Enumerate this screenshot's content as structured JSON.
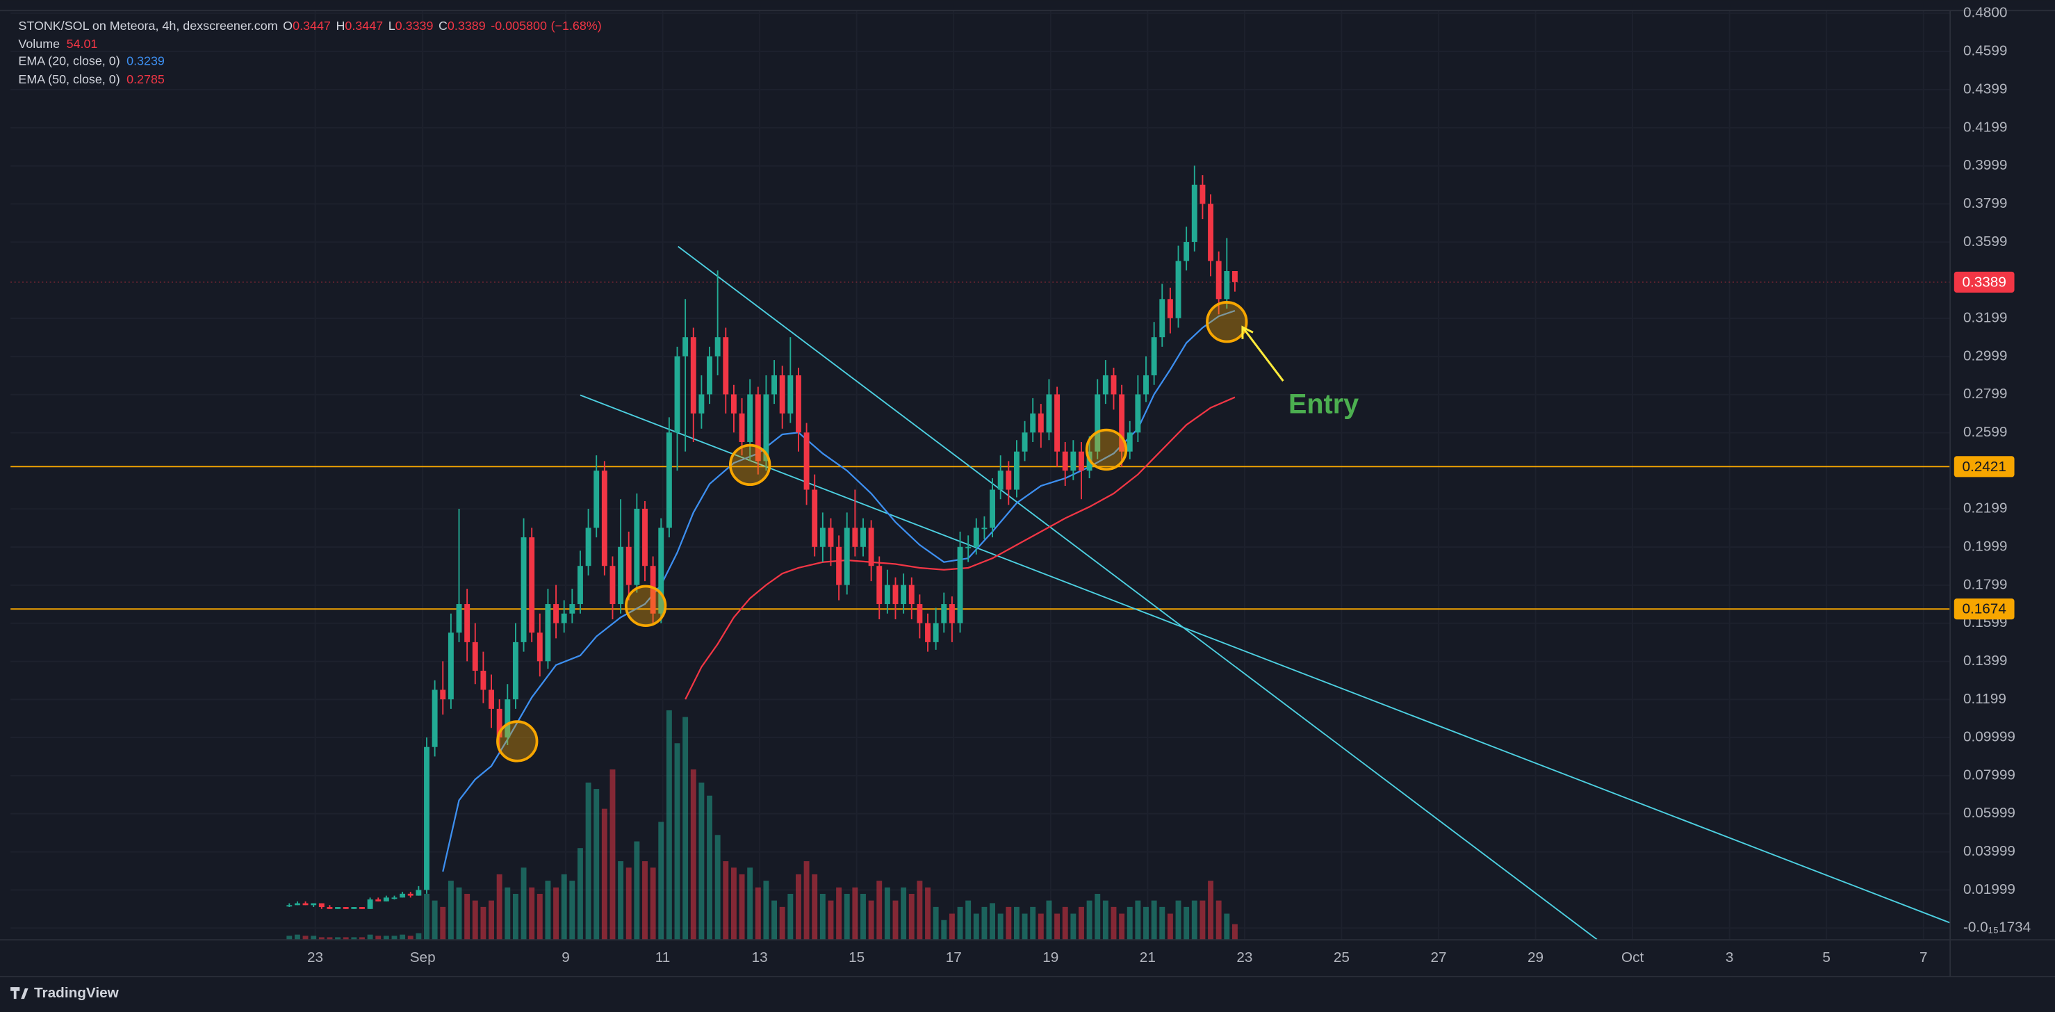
{
  "brand": "TradingView",
  "chart_data": {
    "type": "candlestick",
    "title": "STONK/SOL on Meteora, 4h, dexscreener.com",
    "ohlc_letters": [
      "O",
      "H",
      "L",
      "C"
    ],
    "change": {
      "value": -0.0058,
      "label": "-0.005800"
    },
    "change_pct": {
      "value": -1.68,
      "label": "(−1.68%)"
    },
    "volume_name": "Volume",
    "up_color": "#22ab94",
    "down_color": "#f23645",
    "x": [
      0,
      1,
      2,
      3,
      4,
      5,
      6,
      7,
      8,
      9,
      10,
      11,
      12,
      13,
      14,
      15,
      16,
      17,
      18,
      19,
      20,
      21,
      22,
      23,
      24,
      25,
      26,
      27,
      28,
      29,
      30,
      31,
      32,
      33,
      34,
      35,
      36,
      37,
      38,
      39,
      40,
      41,
      42,
      43,
      44,
      45,
      46,
      47,
      48,
      49,
      50,
      51,
      52,
      53,
      54,
      55,
      56,
      57,
      58,
      59,
      60,
      61,
      62,
      63,
      64,
      65,
      66,
      67,
      68,
      69,
      70,
      71,
      72,
      73,
      74,
      75,
      76,
      77,
      78,
      79,
      80,
      81,
      82,
      83,
      84,
      85,
      86,
      87,
      88,
      89,
      90,
      91,
      92,
      93,
      94,
      95,
      96,
      97,
      98,
      99,
      100,
      101,
      102,
      103,
      104,
      105,
      106,
      107,
      108,
      109,
      110,
      111,
      112,
      113,
      114,
      115,
      116,
      117
    ],
    "ohlc": [
      [
        0.012,
        0.013,
        0.011,
        0.012
      ],
      [
        0.012,
        0.014,
        0.012,
        0.013
      ],
      [
        0.013,
        0.014,
        0.012,
        0.012
      ],
      [
        0.012,
        0.013,
        0.011,
        0.013
      ],
      [
        0.013,
        0.013,
        0.01,
        0.011
      ],
      [
        0.011,
        0.012,
        0.01,
        0.01
      ],
      [
        0.01,
        0.011,
        0.01,
        0.011
      ],
      [
        0.011,
        0.011,
        0.01,
        0.01
      ],
      [
        0.01,
        0.011,
        0.01,
        0.011
      ],
      [
        0.011,
        0.011,
        0.01,
        0.01
      ],
      [
        0.01,
        0.016,
        0.01,
        0.015
      ],
      [
        0.015,
        0.016,
        0.014,
        0.014
      ],
      [
        0.014,
        0.017,
        0.014,
        0.016
      ],
      [
        0.016,
        0.017,
        0.015,
        0.016
      ],
      [
        0.016,
        0.019,
        0.016,
        0.018
      ],
      [
        0.018,
        0.019,
        0.016,
        0.017
      ],
      [
        0.017,
        0.022,
        0.017,
        0.02
      ],
      [
        0.02,
        0.1,
        0.018,
        0.095
      ],
      [
        0.095,
        0.13,
        0.09,
        0.125
      ],
      [
        0.125,
        0.14,
        0.112,
        0.12
      ],
      [
        0.12,
        0.165,
        0.115,
        0.155
      ],
      [
        0.155,
        0.22,
        0.15,
        0.17
      ],
      [
        0.17,
        0.178,
        0.14,
        0.15
      ],
      [
        0.15,
        0.16,
        0.128,
        0.135
      ],
      [
        0.135,
        0.145,
        0.118,
        0.125
      ],
      [
        0.125,
        0.133,
        0.105,
        0.115
      ],
      [
        0.115,
        0.12,
        0.092,
        0.1
      ],
      [
        0.1,
        0.128,
        0.096,
        0.12
      ],
      [
        0.12,
        0.16,
        0.115,
        0.15
      ],
      [
        0.15,
        0.215,
        0.145,
        0.205
      ],
      [
        0.205,
        0.21,
        0.15,
        0.155
      ],
      [
        0.155,
        0.165,
        0.132,
        0.14
      ],
      [
        0.14,
        0.178,
        0.136,
        0.17
      ],
      [
        0.17,
        0.18,
        0.152,
        0.16
      ],
      [
        0.16,
        0.172,
        0.155,
        0.165
      ],
      [
        0.165,
        0.178,
        0.16,
        0.17
      ],
      [
        0.17,
        0.198,
        0.165,
        0.19
      ],
      [
        0.19,
        0.22,
        0.185,
        0.21
      ],
      [
        0.21,
        0.248,
        0.205,
        0.24
      ],
      [
        0.24,
        0.245,
        0.185,
        0.19
      ],
      [
        0.19,
        0.195,
        0.162,
        0.17
      ],
      [
        0.17,
        0.225,
        0.165,
        0.2
      ],
      [
        0.2,
        0.208,
        0.172,
        0.18
      ],
      [
        0.18,
        0.228,
        0.176,
        0.22
      ],
      [
        0.22,
        0.224,
        0.182,
        0.19
      ],
      [
        0.19,
        0.195,
        0.16,
        0.165
      ],
      [
        0.165,
        0.215,
        0.16,
        0.21
      ],
      [
        0.21,
        0.268,
        0.205,
        0.26
      ],
      [
        0.26,
        0.305,
        0.24,
        0.3
      ],
      [
        0.3,
        0.33,
        0.25,
        0.31
      ],
      [
        0.31,
        0.315,
        0.255,
        0.27
      ],
      [
        0.27,
        0.29,
        0.262,
        0.28
      ],
      [
        0.28,
        0.305,
        0.275,
        0.3
      ],
      [
        0.3,
        0.345,
        0.29,
        0.31
      ],
      [
        0.31,
        0.315,
        0.27,
        0.28
      ],
      [
        0.28,
        0.285,
        0.26,
        0.27
      ],
      [
        0.27,
        0.278,
        0.248,
        0.255
      ],
      [
        0.255,
        0.288,
        0.245,
        0.28
      ],
      [
        0.28,
        0.284,
        0.238,
        0.245
      ],
      [
        0.245,
        0.29,
        0.24,
        0.28
      ],
      [
        0.28,
        0.298,
        0.275,
        0.29
      ],
      [
        0.29,
        0.295,
        0.262,
        0.27
      ],
      [
        0.27,
        0.31,
        0.265,
        0.29
      ],
      [
        0.29,
        0.294,
        0.25,
        0.26
      ],
      [
        0.26,
        0.265,
        0.222,
        0.23
      ],
      [
        0.23,
        0.238,
        0.195,
        0.2
      ],
      [
        0.2,
        0.218,
        0.192,
        0.21
      ],
      [
        0.21,
        0.215,
        0.19,
        0.2
      ],
      [
        0.2,
        0.206,
        0.172,
        0.18
      ],
      [
        0.18,
        0.218,
        0.175,
        0.21
      ],
      [
        0.21,
        0.23,
        0.195,
        0.2
      ],
      [
        0.2,
        0.215,
        0.195,
        0.21
      ],
      [
        0.21,
        0.214,
        0.182,
        0.19
      ],
      [
        0.19,
        0.195,
        0.162,
        0.17
      ],
      [
        0.17,
        0.188,
        0.165,
        0.18
      ],
      [
        0.18,
        0.184,
        0.162,
        0.17
      ],
      [
        0.17,
        0.186,
        0.165,
        0.18
      ],
      [
        0.18,
        0.184,
        0.162,
        0.17
      ],
      [
        0.17,
        0.175,
        0.152,
        0.16
      ],
      [
        0.16,
        0.165,
        0.145,
        0.15
      ],
      [
        0.15,
        0.168,
        0.146,
        0.16
      ],
      [
        0.16,
        0.176,
        0.155,
        0.17
      ],
      [
        0.17,
        0.174,
        0.15,
        0.16
      ],
      [
        0.16,
        0.208,
        0.155,
        0.2
      ],
      [
        0.2,
        0.206,
        0.192,
        0.2
      ],
      [
        0.2,
        0.215,
        0.196,
        0.21
      ],
      [
        0.21,
        0.216,
        0.204,
        0.21
      ],
      [
        0.21,
        0.236,
        0.205,
        0.23
      ],
      [
        0.23,
        0.248,
        0.225,
        0.24
      ],
      [
        0.24,
        0.245,
        0.222,
        0.23
      ],
      [
        0.23,
        0.256,
        0.226,
        0.25
      ],
      [
        0.25,
        0.266,
        0.245,
        0.26
      ],
      [
        0.26,
        0.278,
        0.255,
        0.27
      ],
      [
        0.27,
        0.275,
        0.252,
        0.26
      ],
      [
        0.26,
        0.288,
        0.256,
        0.28
      ],
      [
        0.28,
        0.284,
        0.242,
        0.25
      ],
      [
        0.25,
        0.255,
        0.232,
        0.24
      ],
      [
        0.24,
        0.256,
        0.235,
        0.25
      ],
      [
        0.25,
        0.255,
        0.225,
        0.24
      ],
      [
        0.24,
        0.258,
        0.236,
        0.25
      ],
      [
        0.25,
        0.288,
        0.246,
        0.28
      ],
      [
        0.28,
        0.298,
        0.275,
        0.29
      ],
      [
        0.29,
        0.294,
        0.272,
        0.28
      ],
      [
        0.28,
        0.285,
        0.242,
        0.25
      ],
      [
        0.25,
        0.266,
        0.246,
        0.26
      ],
      [
        0.26,
        0.29,
        0.255,
        0.28
      ],
      [
        0.28,
        0.3,
        0.276,
        0.29
      ],
      [
        0.29,
        0.318,
        0.285,
        0.31
      ],
      [
        0.31,
        0.338,
        0.305,
        0.33
      ],
      [
        0.33,
        0.336,
        0.312,
        0.32
      ],
      [
        0.32,
        0.358,
        0.315,
        0.35
      ],
      [
        0.35,
        0.368,
        0.345,
        0.36
      ],
      [
        0.36,
        0.4,
        0.355,
        0.39
      ],
      [
        0.39,
        0.395,
        0.372,
        0.38
      ],
      [
        0.38,
        0.385,
        0.342,
        0.35
      ],
      [
        0.35,
        0.355,
        0.322,
        0.33
      ],
      [
        0.33,
        0.362,
        0.325,
        0.3447
      ],
      [
        0.3447,
        0.3447,
        0.3339,
        0.3389
      ]
    ],
    "volume": [
      14,
      18,
      14,
      14,
      9,
      9,
      9,
      9,
      9,
      9,
      18,
      14,
      14,
      14,
      18,
      14,
      23,
      158,
      135,
      113,
      203,
      180,
      158,
      135,
      113,
      135,
      225,
      180,
      158,
      248,
      180,
      158,
      203,
      180,
      225,
      203,
      315,
      540,
      518,
      450,
      585,
      270,
      248,
      338,
      270,
      248,
      405,
      788,
      675,
      765,
      585,
      540,
      495,
      360,
      270,
      248,
      225,
      248,
      180,
      203,
      135,
      113,
      158,
      225,
      270,
      225,
      158,
      135,
      180,
      158,
      180,
      158,
      135,
      203,
      180,
      135,
      180,
      158,
      203,
      180,
      113,
      68,
      90,
      113,
      135,
      90,
      113,
      126,
      90,
      113,
      113,
      90,
      113,
      90,
      135,
      90,
      113,
      90,
      113,
      135,
      158,
      135,
      113,
      90,
      113,
      135,
      113,
      135,
      113,
      90,
      135,
      113,
      135,
      135,
      203,
      135,
      90,
      54.01
    ],
    "volume_lim": [
      0,
      3190
    ],
    "series": [
      {
        "name": "EMA (20, close, 0)",
        "color": "#3d8ff0",
        "x": [
          19,
          21,
          23,
          25,
          27,
          30,
          33,
          36,
          38,
          41,
          44,
          46,
          48,
          50,
          52,
          55,
          58,
          61,
          63,
          66,
          69,
          72,
          75,
          78,
          81,
          84,
          87,
          90,
          93,
          96,
          99,
          102,
          105,
          107,
          109,
          111,
          113,
          115,
          117
        ],
        "values": [
          0.0296,
          0.067,
          0.078,
          0.085,
          0.099,
          0.121,
          0.138,
          0.143,
          0.153,
          0.163,
          0.17,
          0.18,
          0.197,
          0.218,
          0.233,
          0.244,
          0.249,
          0.259,
          0.26,
          0.249,
          0.24,
          0.228,
          0.213,
          0.201,
          0.192,
          0.194,
          0.208,
          0.223,
          0.232,
          0.236,
          0.242,
          0.249,
          0.262,
          0.28,
          0.293,
          0.307,
          0.315,
          0.321,
          0.3239
        ]
      },
      {
        "name": "EMA (50, close, 0)",
        "color": "#f23645",
        "x": [
          49,
          51,
          53,
          55,
          57,
          59,
          61,
          63,
          66,
          69,
          72,
          75,
          78,
          81,
          84,
          87,
          90,
          93,
          96,
          99,
          102,
          105,
          108,
          111,
          114,
          117
        ],
        "values": [
          0.12,
          0.137,
          0.149,
          0.163,
          0.173,
          0.18,
          0.186,
          0.189,
          0.192,
          0.193,
          0.192,
          0.191,
          0.189,
          0.188,
          0.189,
          0.194,
          0.201,
          0.208,
          0.215,
          0.221,
          0.228,
          0.238,
          0.251,
          0.264,
          0.273,
          0.2785
        ]
      }
    ],
    "hlines": [
      {
        "value": 0.2421,
        "color": "#f7a600"
      },
      {
        "value": 0.1674,
        "color": "#f7a600"
      }
    ],
    "trendlines": [
      {
        "x": [
          48.1,
          161.8
        ],
        "y": [
          0.3576,
          -0.006
        ],
        "color": "#4dd0e1"
      },
      {
        "x": [
          36,
          205.7
        ],
        "y": [
          0.2796,
          0.0024
        ],
        "color": "#4dd0e1"
      }
    ],
    "markers": {
      "color": "#f7a600",
      "x": [
        28.2,
        44.1,
        57,
        101.1,
        116
      ],
      "y": [
        0.098,
        0.169,
        0.243,
        0.251,
        0.318
      ]
    },
    "annotation": {
      "text": "Entry",
      "color": "#4caf50",
      "arrow_color": "#ffeb3b"
    },
    "xlim": [
      -34.5,
      205.5
    ],
    "xticks": [
      {
        "value": 3.2,
        "label": "23"
      },
      {
        "value": 16.5,
        "label": "Sep"
      },
      {
        "value": 34.2,
        "label": "9"
      },
      {
        "value": 46.2,
        "label": "11"
      },
      {
        "value": 58.2,
        "label": "13"
      },
      {
        "value": 70.2,
        "label": "15"
      },
      {
        "value": 82.2,
        "label": "17"
      },
      {
        "value": 94.2,
        "label": "19"
      },
      {
        "value": 106.2,
        "label": "21"
      },
      {
        "value": 118.2,
        "label": "23"
      },
      {
        "value": 130.2,
        "label": "25"
      },
      {
        "value": 142.2,
        "label": "27"
      },
      {
        "value": 154.2,
        "label": "29"
      },
      {
        "value": 166.2,
        "label": "Oct"
      },
      {
        "value": 178.2,
        "label": "3"
      },
      {
        "value": 190.2,
        "label": "5"
      },
      {
        "value": 202.2,
        "label": "7"
      }
    ],
    "ylim": [
      -0.0062,
      0.4814
    ],
    "yticks": [
      {
        "value": 0.48,
        "label": "0.4800"
      },
      0.4599,
      0.4399,
      0.4199,
      0.3999,
      0.3799,
      0.3599,
      0.3199,
      0.2999,
      0.2799,
      0.2599,
      0.2199,
      0.1999,
      0.1799,
      0.1599,
      0.1399,
      0.1199,
      0.09999,
      0.07999,
      0.05999,
      0.03999,
      0.01999,
      {
        "value": -1.734e-16,
        "label": "-0.0₁₅1734"
      }
    ],
    "grid": true
  }
}
